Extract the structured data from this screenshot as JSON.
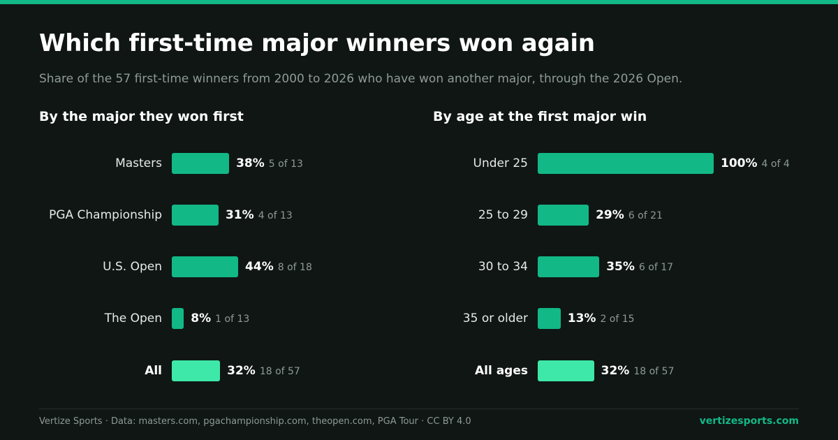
{
  "title": "Which first-time major winners won again",
  "subtitle": "Share of the 57 first-time winners from 2000 to 2026 who have won another major, through the 2026 Open.",
  "footer": {
    "source": "Vertize Sports · Data: masters.com, pgachampionship.com, theopen.com, PGA Tour · CC BY 4.0",
    "brand": "vertizesports.com"
  },
  "colors": {
    "accent": "#12b886",
    "total_bar": "#3ee8a8",
    "background": "#0f1614",
    "muted_text": "#8f9a96"
  },
  "chart_data": [
    {
      "type": "bar",
      "orientation": "horizontal",
      "title": "By the major they won first",
      "xlim": [
        0,
        100
      ],
      "unit": "%",
      "categories": [
        "Masters",
        "PGA Championship",
        "U.S. Open",
        "The Open",
        "All"
      ],
      "values": [
        38,
        31,
        44,
        8,
        32
      ],
      "value_labels": [
        "38%",
        "31%",
        "44%",
        "8%",
        "32%"
      ],
      "counts": [
        "5 of 13",
        "4 of 13",
        "8 of 18",
        "1 of 13",
        "18 of 57"
      ],
      "total_index": 4
    },
    {
      "type": "bar",
      "orientation": "horizontal",
      "title": "By age at the first major win",
      "xlim": [
        0,
        100
      ],
      "unit": "%",
      "categories": [
        "Under 25",
        "25 to 29",
        "30 to 34",
        "35 or older",
        "All ages"
      ],
      "values": [
        100,
        29,
        35,
        13,
        32
      ],
      "value_labels": [
        "100%",
        "29%",
        "35%",
        "13%",
        "32%"
      ],
      "counts": [
        "4 of 4",
        "6 of 21",
        "6 of 17",
        "2 of 15",
        "18 of 57"
      ],
      "total_index": 4
    }
  ]
}
